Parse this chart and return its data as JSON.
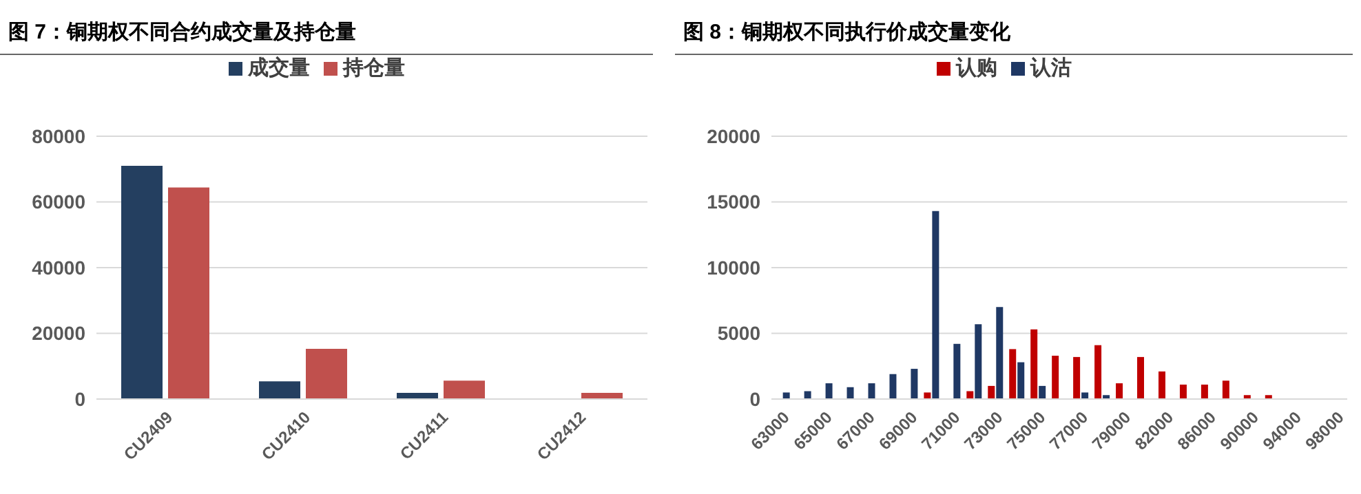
{
  "chart_data": [
    {
      "type": "bar",
      "title": "图 7：铜期权不同合约成交量及持仓量",
      "categories": [
        "CU2409",
        "CU2410",
        "CU2411",
        "CU2412"
      ],
      "series": [
        {
          "name": "成交量",
          "color": "#243f60",
          "values": [
            71000,
            5400,
            1900,
            null
          ]
        },
        {
          "name": "持仓量",
          "color": "#c0504d",
          "values": [
            64400,
            15300,
            5600,
            1900
          ]
        }
      ],
      "ylim": [
        0,
        80000
      ],
      "yticks": [
        0,
        20000,
        40000,
        60000,
        80000
      ],
      "grid": "y",
      "legend": "top"
    },
    {
      "type": "bar",
      "title": "图 8：铜期权不同执行价成交量变化",
      "categories": [
        "63000",
        null,
        "65000",
        null,
        "67000",
        null,
        "69000",
        null,
        "71000",
        null,
        "73000",
        null,
        "75000",
        null,
        "77000",
        null,
        "79000",
        null,
        "82000",
        null,
        "86000",
        null,
        "90000",
        null,
        "94000",
        null,
        "98000"
      ],
      "series": [
        {
          "name": "认购",
          "color": "#c00000",
          "values": [
            0,
            0,
            0,
            0,
            0,
            0,
            0,
            500,
            null,
            600,
            1000,
            3800,
            5300,
            3300,
            3200,
            4100,
            1200,
            3200,
            2100,
            1100,
            1100,
            1400,
            300,
            300,
            0,
            0,
            0
          ]
        },
        {
          "name": "认沽",
          "color": "#1f3864",
          "values": [
            500,
            600,
            1200,
            900,
            1200,
            1900,
            2300,
            14300,
            4200,
            5700,
            7000,
            2800,
            1000,
            null,
            500,
            300,
            0,
            null,
            0,
            0,
            0,
            0,
            0,
            0,
            0,
            0,
            null
          ]
        }
      ],
      "ylim": [
        0,
        20000
      ],
      "yticks": [
        0,
        5000,
        10000,
        15000,
        20000
      ],
      "grid": "y",
      "legend": "top"
    }
  ]
}
